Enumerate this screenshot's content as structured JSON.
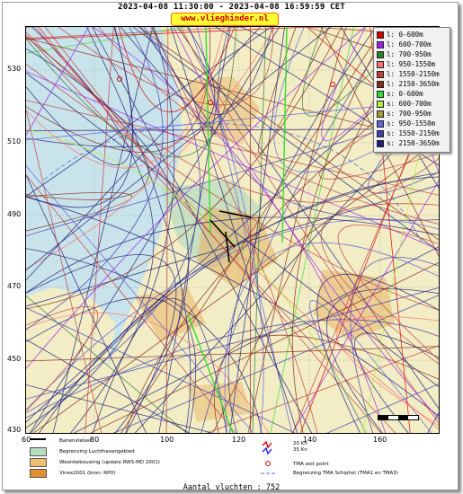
{
  "header": {
    "title": "2023-04-08 11:30:00 - 2023-04-08 16:59:59 CET",
    "site": "www.vlieghinder.nl"
  },
  "axes": {
    "y_ticks": [
      "530",
      "510",
      "490",
      "470",
      "450",
      "430"
    ],
    "x_ticks": [
      "60",
      "80",
      "100",
      "120",
      "140",
      "160"
    ]
  },
  "legend": [
    {
      "label": "l: 0-600m",
      "color": "#d40000"
    },
    {
      "label": "l: 600-700m",
      "color": "#a020f0"
    },
    {
      "label": "l: 700-950m",
      "color": "#2e7d32"
    },
    {
      "label": "l: 950-1550m",
      "color": "#ff7070"
    },
    {
      "label": "l: 1550-2150m",
      "color": "#c04040"
    },
    {
      "label": "l: 2150-3650m",
      "color": "#8b2a1a"
    },
    {
      "label": "s: 0-600m",
      "color": "#33dd33"
    },
    {
      "label": "s: 600-700m",
      "color": "#b0f040"
    },
    {
      "label": "s: 700-950m",
      "color": "#a0a030"
    },
    {
      "label": "s: 950-1550m",
      "color": "#6060e0"
    },
    {
      "label": "s: 1550-2150m",
      "color": "#4040b0"
    },
    {
      "label": "s: 2150-3650m",
      "color": "#20207a"
    }
  ],
  "bottom_legend": {
    "baanstelsel": "Banenstelsel",
    "luchthaven": "Begrenzing Luchthavengebied",
    "woonbebouwing": "Woonbebouwing (update RWS-MD 2001)",
    "vinex": "Vinex2001 (bron: RPD)",
    "wind": "20 Kn\n35 Kn",
    "wind_20": "20 Kn",
    "wind_35": "35 Kn",
    "tma_exit": "TMA exit point",
    "tma_border": "Begrenzing TMA Schiphol  (TMA1 en TMA3)"
  },
  "footer": {
    "count": "Aantal vluchten : 752"
  },
  "colors": {
    "water": "#c9e3ea",
    "land": "#f2edc4",
    "urban": "#e8b060",
    "airport": "#b8dcc0"
  }
}
